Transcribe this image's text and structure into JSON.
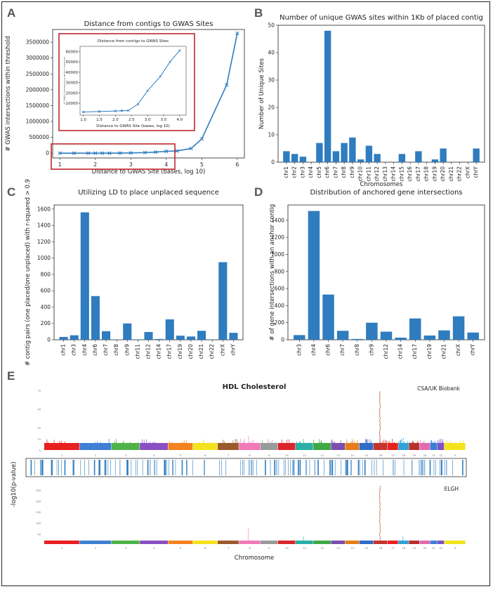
{
  "panel_labels": {
    "a": "A",
    "b": "B",
    "c": "C",
    "d": "D",
    "e": "E"
  },
  "chart_data": [
    {
      "id": "A",
      "type": "line",
      "title": "Distance from contigs to GWAS Sites",
      "xlabel": "Distance to GWAS Site (bases, log 10)",
      "ylabel": "# GWAS intersections within threshold",
      "x": [
        1.0,
        1.4,
        1.8,
        2.0,
        2.2,
        2.4,
        2.7,
        3.0,
        3.4,
        3.7,
        4.0,
        4.3,
        4.7,
        5.0,
        5.7,
        6.0
      ],
      "y": [
        800,
        900,
        1000,
        1100,
        1200,
        1300,
        4000,
        9000,
        19000,
        33000,
        60000,
        70000,
        150000,
        450000,
        2150000,
        3780000
      ],
      "xlim": [
        0.8,
        6.2
      ],
      "ylim": [
        -150000,
        3900000
      ],
      "xticks": [
        "1",
        "2",
        "3",
        "4",
        "5",
        "6"
      ],
      "yticks": [
        "0",
        "500000",
        "1000000",
        "1500000",
        "2000000",
        "2500000",
        "3000000",
        "3500000"
      ],
      "inset": {
        "title": "Distance from contigs to GWAS Sites",
        "xlabel": "Distance to GWAS Site (bases, log 10)",
        "ylabel": "# GWAS intersections within threshold",
        "x": [
          1.0,
          1.5,
          2.0,
          2.2,
          2.4,
          2.7,
          3.0,
          3.4,
          3.7,
          4.0
        ],
        "y": [
          1500,
          2000,
          2500,
          2700,
          2900,
          9000,
          22000,
          36000,
          50000,
          61000
        ],
        "xlim": [
          0.9,
          4.2
        ],
        "ylim": [
          -1500,
          65000
        ],
        "xticks": [
          "1.0",
          "1.5",
          "2.0",
          "2.5",
          "3.0",
          "3.5",
          "4.0"
        ],
        "yticks": [
          "10000",
          "20000",
          "30000",
          "40000",
          "50000",
          "60000"
        ]
      }
    },
    {
      "id": "B",
      "type": "bar",
      "title": "Number of unique GWAS sites within 1Kb of placed contig",
      "xlabel": "Chromosomes",
      "ylabel": "Number of Unique Sites",
      "categories": [
        "chr1",
        "chr2",
        "chr3",
        "chr4",
        "chr5",
        "chr6",
        "chr7",
        "chr8",
        "chr9",
        "chr10",
        "chr11",
        "chr12",
        "chr13",
        "chr14",
        "chr15",
        "chr16",
        "chr17",
        "chr18",
        "chr19",
        "chr20",
        "chr21",
        "chr22",
        "chrX",
        "chrY"
      ],
      "values": [
        4,
        3,
        2,
        0,
        7,
        48,
        4,
        7,
        9,
        1,
        6,
        3,
        0,
        0,
        3,
        0,
        4,
        0,
        1,
        5,
        0,
        0,
        0,
        5
      ],
      "ylim": [
        0,
        50
      ],
      "yticks": [
        "0",
        "10",
        "20",
        "30",
        "40",
        "50"
      ]
    },
    {
      "id": "C",
      "type": "bar",
      "title": "Utilizing LD to place unplaced sequence",
      "xlabel": "",
      "ylabel": "# contig pairs (one placed/one unplaced) with r-squared > 0.9",
      "categories": [
        "chr1",
        "chr3",
        "chr4",
        "chr6",
        "chr7",
        "chr8",
        "chr9",
        "chr11",
        "chr12",
        "chr14",
        "chr17",
        "chr19",
        "chr20",
        "chr21",
        "chr22",
        "chrX",
        "chrY"
      ],
      "values": [
        35,
        55,
        1560,
        535,
        105,
        3,
        200,
        5,
        95,
        10,
        250,
        50,
        40,
        110,
        5,
        950,
        85
      ],
      "ylim": [
        0,
        1650
      ],
      "yticks": [
        "0",
        "200",
        "400",
        "600",
        "800",
        "1000",
        "1200",
        "1400",
        "1600"
      ]
    },
    {
      "id": "D",
      "type": "bar",
      "title": "Distribution of anchored gene intersections",
      "xlabel": "",
      "ylabel": "# of gene intersections with an anchor contig",
      "categories": [
        "chr3",
        "chr4",
        "chr6",
        "chr7",
        "chr8",
        "chr9",
        "chr12",
        "chr14",
        "chr17",
        "chr19",
        "chr21",
        "chrX",
        "chrY"
      ],
      "values": [
        55,
        1510,
        530,
        105,
        10,
        200,
        95,
        25,
        250,
        50,
        110,
        275,
        85
      ],
      "ylim": [
        0,
        1580
      ],
      "yticks": [
        "0",
        "200",
        "400",
        "600",
        "800",
        "1000",
        "1200",
        "1400"
      ]
    },
    {
      "id": "E",
      "type": "scatter",
      "title": "HDL Cholesterol",
      "xlabel": "Chromosome",
      "ylabel": "-log10(p-value)",
      "top_label": "CSA/UK Biobank",
      "bottom_label": "ELGH",
      "chromosomes": [
        "1",
        "2",
        "3",
        "4",
        "5",
        "6",
        "7",
        "8",
        "9",
        "10",
        "11",
        "12",
        "13",
        "14",
        "15",
        "16",
        "17",
        "18",
        "19",
        "20",
        "21",
        "22",
        "X"
      ],
      "colors": [
        "#e8201f",
        "#3f7fd4",
        "#4fb34a",
        "#8a4fc2",
        "#f58220",
        "#f2e31c",
        "#9b5a2a",
        "#f279b8",
        "#9a9a9a",
        "#d9262c",
        "#2ab0a5",
        "#3fa845",
        "#7a4fb0",
        "#e57d1a",
        "#2f6cc9",
        "#c6342c",
        "#e8201f",
        "#2fa3d6",
        "#b8302e",
        "#e26bb0",
        "#3a7ed6",
        "#7c52c4",
        "#f2e31c"
      ],
      "top_peaks": [
        {
          "chrom": "8",
          "value": 13
        },
        {
          "chrom": "11",
          "value": 10
        },
        {
          "chrom": "16",
          "value": 74
        },
        {
          "chrom": "18",
          "value": 12
        }
      ],
      "bottom_peaks": [
        {
          "chrom": "8",
          "value": 80
        },
        {
          "chrom": "11",
          "value": 40
        },
        {
          "chrom": "16",
          "value": 270
        },
        {
          "chrom": "18",
          "value": 40
        }
      ],
      "top_yticks": [
        "5",
        "10",
        "25",
        "50",
        "75"
      ],
      "bottom_yticks": [
        "50",
        "100",
        "150",
        "200",
        "250"
      ]
    }
  ]
}
